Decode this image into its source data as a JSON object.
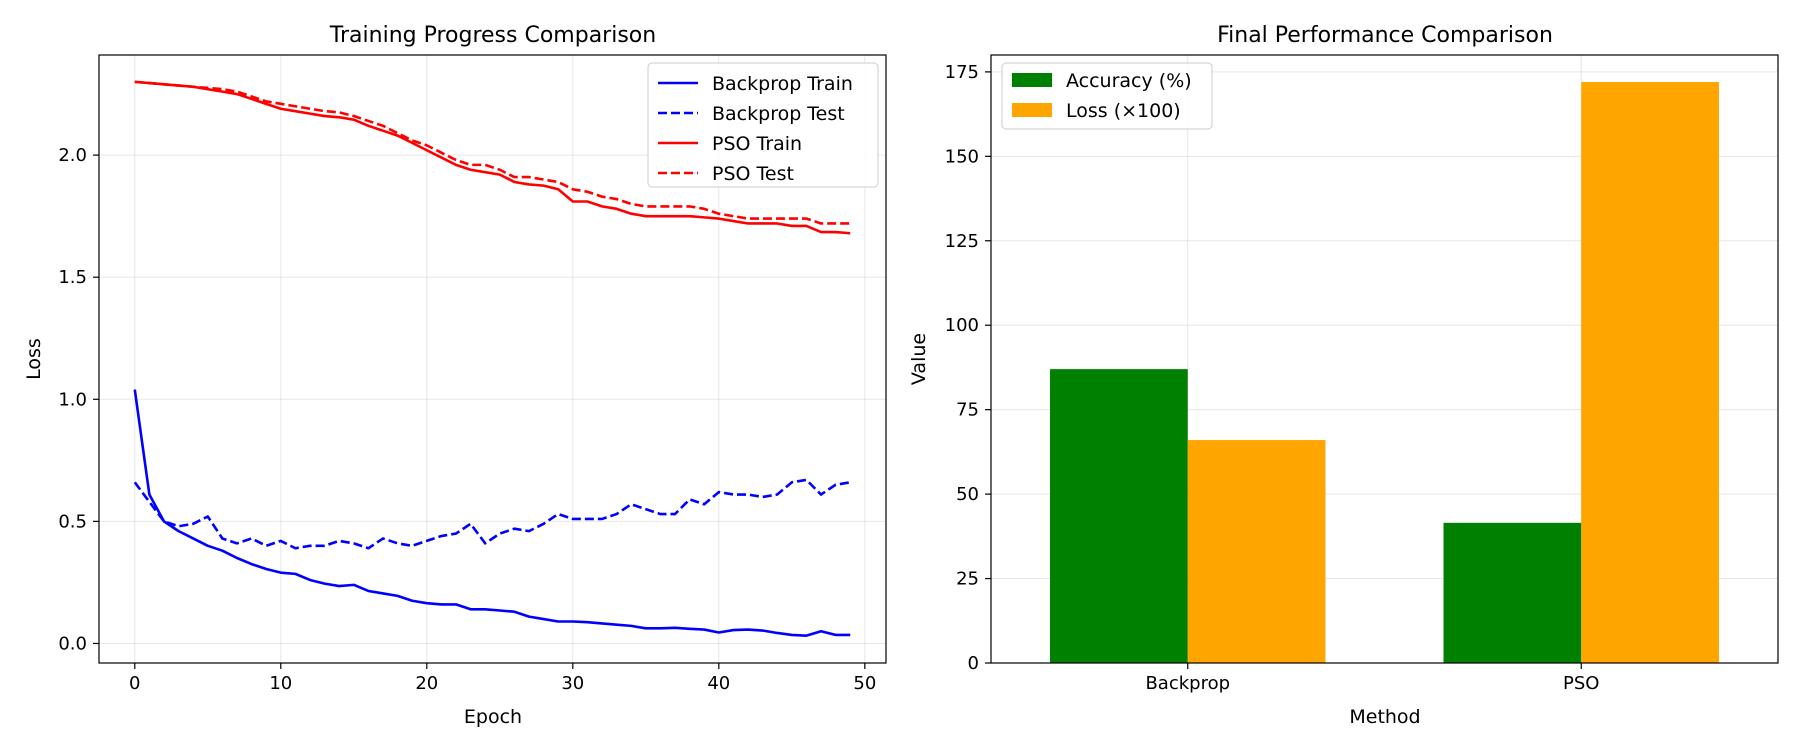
{
  "chart_data": [
    {
      "type": "line",
      "title": "Training Progress Comparison",
      "xlabel": "Epoch",
      "ylabel": "Loss",
      "xlim": [
        -2.45,
        51.45
      ],
      "ylim": [
        -0.08,
        2.41
      ],
      "xticks": [
        0,
        10,
        20,
        30,
        40,
        50
      ],
      "yticks": [
        0.0,
        0.5,
        1.0,
        1.5,
        2.0
      ],
      "ytick_labels": [
        "0.0",
        "0.5",
        "1.0",
        "1.5",
        "2.0"
      ],
      "grid": true,
      "legend_position": "top-right",
      "x": [
        0,
        1,
        2,
        3,
        4,
        5,
        6,
        7,
        8,
        9,
        10,
        11,
        12,
        13,
        14,
        15,
        16,
        17,
        18,
        19,
        20,
        21,
        22,
        23,
        24,
        25,
        26,
        27,
        28,
        29,
        30,
        31,
        32,
        33,
        34,
        35,
        36,
        37,
        38,
        39,
        40,
        41,
        42,
        43,
        44,
        45,
        46,
        47,
        48,
        49
      ],
      "series": [
        {
          "name": "Backprop Train",
          "color": "#0000ff",
          "dash": "solid",
          "values": [
            1.04,
            0.61,
            0.5,
            0.46,
            0.43,
            0.4,
            0.38,
            0.35,
            0.325,
            0.305,
            0.29,
            0.285,
            0.26,
            0.245,
            0.235,
            0.24,
            0.215,
            0.205,
            0.195,
            0.175,
            0.165,
            0.16,
            0.16,
            0.14,
            0.14,
            0.135,
            0.13,
            0.11,
            0.1,
            0.09,
            0.09,
            0.087,
            0.082,
            0.077,
            0.072,
            0.062,
            0.062,
            0.064,
            0.06,
            0.057,
            0.045,
            0.055,
            0.057,
            0.053,
            0.043,
            0.035,
            0.032,
            0.05,
            0.035,
            0.035
          ]
        },
        {
          "name": "Backprop Test",
          "color": "#0000ff",
          "dash": "dashed",
          "values": [
            0.66,
            0.58,
            0.5,
            0.48,
            0.49,
            0.52,
            0.43,
            0.41,
            0.43,
            0.4,
            0.42,
            0.39,
            0.4,
            0.4,
            0.42,
            0.41,
            0.39,
            0.43,
            0.41,
            0.4,
            0.42,
            0.44,
            0.45,
            0.49,
            0.41,
            0.45,
            0.47,
            0.46,
            0.49,
            0.53,
            0.51,
            0.51,
            0.51,
            0.53,
            0.57,
            0.55,
            0.53,
            0.53,
            0.59,
            0.57,
            0.62,
            0.61,
            0.61,
            0.6,
            0.61,
            0.66,
            0.67,
            0.61,
            0.65,
            0.66
          ]
        },
        {
          "name": "PSO Train",
          "color": "#ff0000",
          "dash": "solid",
          "values": [
            2.3,
            2.295,
            2.29,
            2.285,
            2.28,
            2.27,
            2.26,
            2.25,
            2.23,
            2.21,
            2.19,
            2.18,
            2.17,
            2.16,
            2.155,
            2.145,
            2.12,
            2.1,
            2.08,
            2.05,
            2.02,
            1.99,
            1.96,
            1.94,
            1.93,
            1.92,
            1.89,
            1.88,
            1.875,
            1.86,
            1.81,
            1.81,
            1.79,
            1.78,
            1.76,
            1.75,
            1.75,
            1.75,
            1.75,
            1.745,
            1.74,
            1.73,
            1.72,
            1.72,
            1.72,
            1.71,
            1.71,
            1.685,
            1.685,
            1.68
          ]
        },
        {
          "name": "PSO Test",
          "color": "#ff0000",
          "dash": "dashed",
          "values": [
            2.3,
            2.295,
            2.29,
            2.285,
            2.28,
            2.275,
            2.27,
            2.26,
            2.24,
            2.22,
            2.21,
            2.2,
            2.19,
            2.18,
            2.175,
            2.16,
            2.14,
            2.12,
            2.09,
            2.06,
            2.04,
            2.01,
            1.98,
            1.96,
            1.96,
            1.94,
            1.91,
            1.91,
            1.9,
            1.89,
            1.86,
            1.85,
            1.83,
            1.82,
            1.8,
            1.79,
            1.79,
            1.79,
            1.79,
            1.78,
            1.76,
            1.75,
            1.74,
            1.74,
            1.74,
            1.74,
            1.74,
            1.72,
            1.72,
            1.72
          ]
        }
      ]
    },
    {
      "type": "bar",
      "title": "Final Performance Comparison",
      "xlabel": "Method",
      "ylabel": "Value",
      "categories": [
        "Backprop",
        "PSO"
      ],
      "ylim": [
        0,
        180
      ],
      "yticks": [
        0,
        25,
        50,
        75,
        100,
        125,
        150,
        175
      ],
      "grid": true,
      "legend_position": "top-left",
      "series": [
        {
          "name": "Accuracy (%)",
          "color": "#008000",
          "values": [
            87,
            41.5
          ]
        },
        {
          "name": "Loss (×100)",
          "color": "#ffa500",
          "values": [
            66,
            172
          ]
        }
      ]
    }
  ]
}
